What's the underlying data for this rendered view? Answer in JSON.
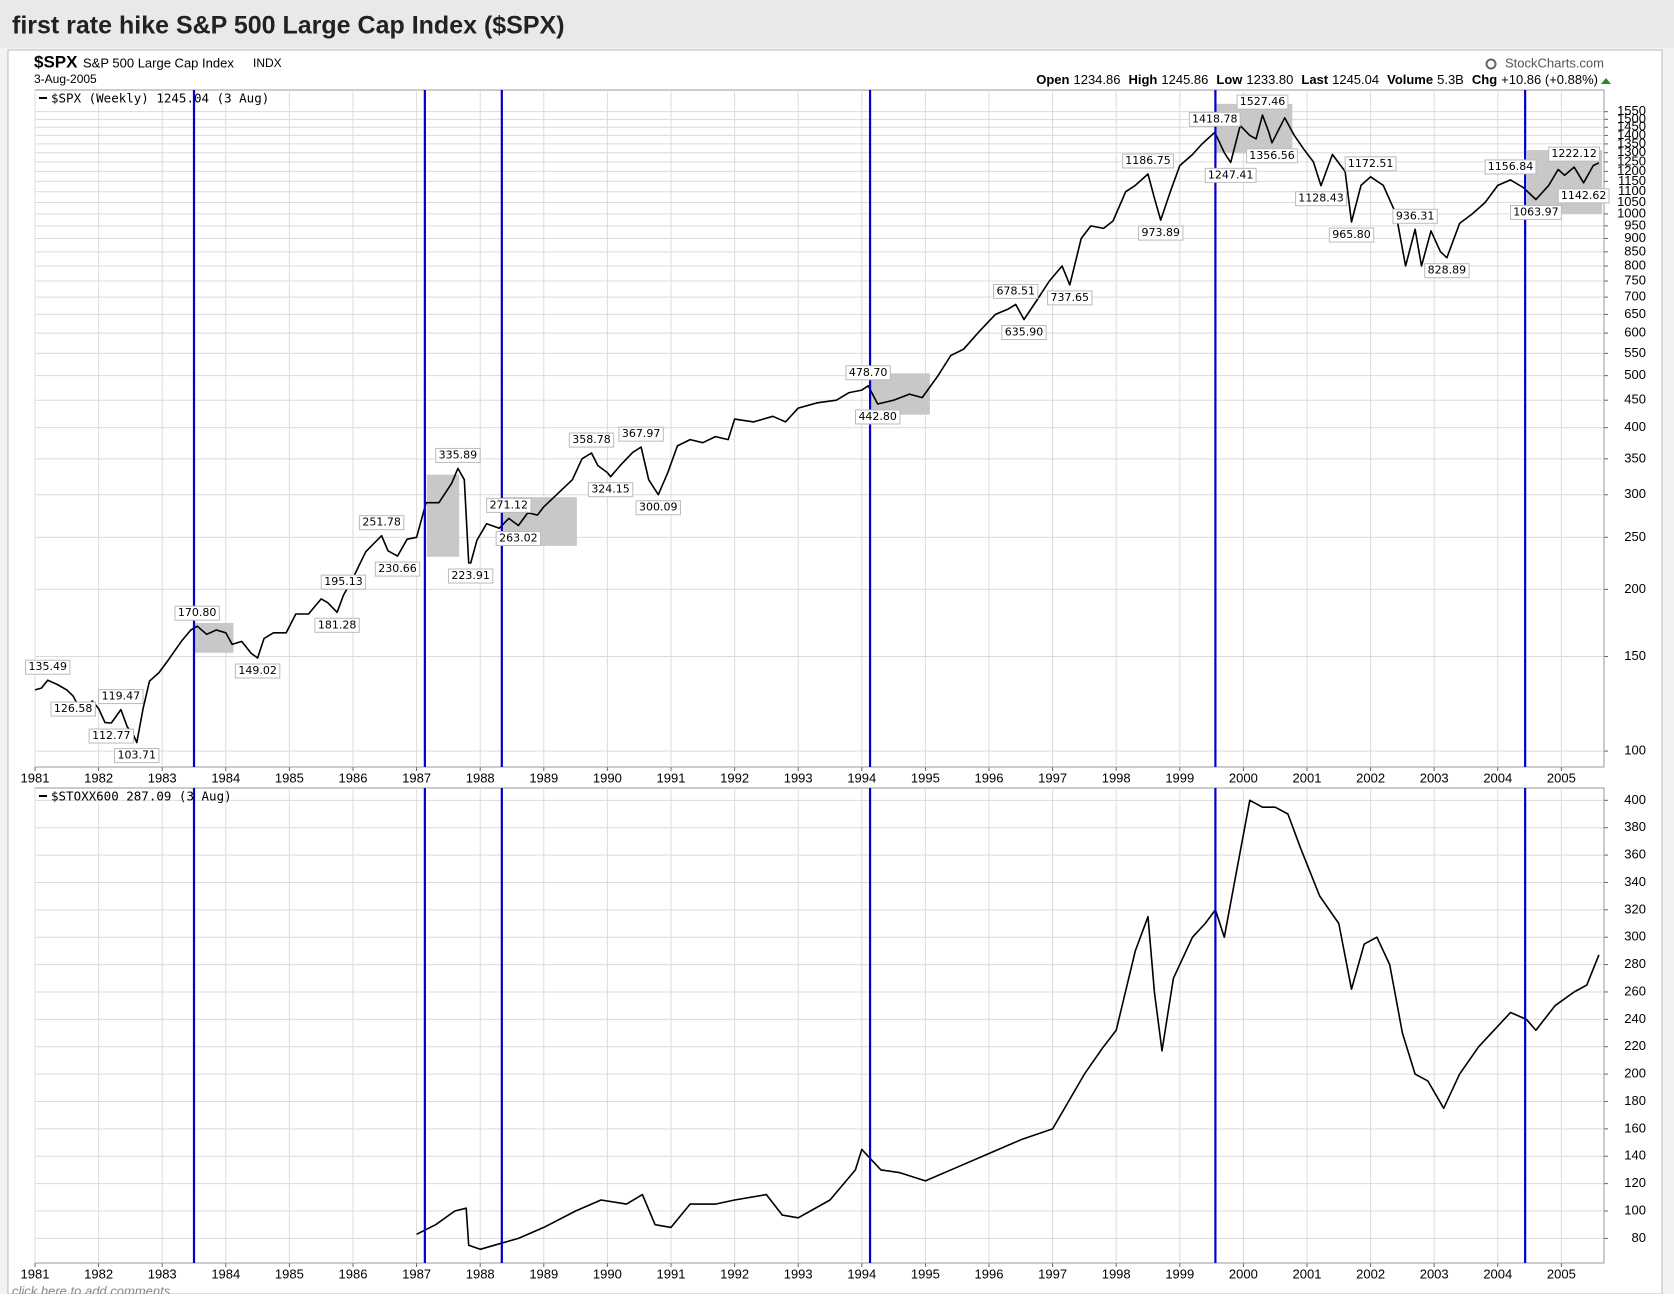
{
  "header": {
    "title": "first rate hike S&P 500 Large Cap Index ($SPX)",
    "footer": "click here to add comments"
  },
  "chart_data": [
    {
      "type": "line",
      "log_y": true,
      "symbol": "$SPX",
      "name": "S&P 500 Large Cap Index",
      "exchange": "INDX",
      "date": "3-Aug-2005",
      "source": "StockCharts.com",
      "quote": [
        {
          "label": "Open",
          "value": "1234.86"
        },
        {
          "label": "High",
          "value": "1245.86"
        },
        {
          "label": "Low",
          "value": "1233.80"
        },
        {
          "label": "Last",
          "value": "1245.04"
        },
        {
          "label": "Volume",
          "value": "5.3B"
        },
        {
          "label": "Chg",
          "value": "+10.86 (+0.88%)"
        }
      ],
      "legend": "$SPX (Weekly) 1245.04 (3 Aug)",
      "color": "#000000",
      "grid": true,
      "x": [
        1981.0,
        1981.1,
        1981.2,
        1981.35,
        1981.5,
        1981.6,
        1981.75,
        1981.9,
        1982.0,
        1982.1,
        1982.2,
        1982.35,
        1982.45,
        1982.55,
        1982.6,
        1982.7,
        1982.8,
        1982.95,
        1983.1,
        1983.3,
        1983.45,
        1983.55,
        1983.7,
        1983.85,
        1984.0,
        1984.1,
        1984.25,
        1984.4,
        1984.5,
        1984.6,
        1984.75,
        1984.95,
        1985.1,
        1985.3,
        1985.5,
        1985.6,
        1985.75,
        1985.85,
        1986.0,
        1986.2,
        1986.35,
        1986.45,
        1986.55,
        1986.7,
        1986.85,
        1987.0,
        1987.15,
        1987.35,
        1987.55,
        1987.65,
        1987.75,
        1987.82,
        1987.85,
        1987.95,
        1988.1,
        1988.3,
        1988.45,
        1988.6,
        1988.75,
        1988.9,
        1989.0,
        1989.2,
        1989.45,
        1989.6,
        1989.75,
        1989.85,
        1990.0,
        1990.05,
        1990.2,
        1990.4,
        1990.53,
        1990.65,
        1990.8,
        1990.95,
        1991.1,
        1991.3,
        1991.5,
        1991.7,
        1991.9,
        1992.0,
        1992.3,
        1992.6,
        1992.8,
        1993.0,
        1993.3,
        1993.6,
        1993.8,
        1994.0,
        1994.1,
        1994.25,
        1994.5,
        1994.75,
        1994.95,
        1995.2,
        1995.4,
        1995.6,
        1995.85,
        1996.1,
        1996.3,
        1996.42,
        1996.55,
        1996.75,
        1996.95,
        1997.15,
        1997.27,
        1997.45,
        1997.6,
        1997.8,
        1997.95,
        1998.15,
        1998.3,
        1998.5,
        1998.6,
        1998.7,
        1998.85,
        1999.0,
        1999.2,
        1999.35,
        1999.55,
        1999.7,
        1999.8,
        1999.95,
        2000.1,
        2000.2,
        2000.3,
        2000.4,
        2000.45,
        2000.65,
        2000.8,
        2000.95,
        2001.1,
        2001.22,
        2001.4,
        2001.6,
        2001.7,
        2001.85,
        2002.0,
        2002.2,
        2002.4,
        2002.55,
        2002.7,
        2002.8,
        2002.95,
        2003.1,
        2003.2,
        2003.4,
        2003.6,
        2003.8,
        2004.0,
        2004.2,
        2004.4,
        2004.6,
        2004.8,
        2004.95,
        2005.05,
        2005.2,
        2005.35,
        2005.5,
        2005.59
      ],
      "values": [
        130,
        131,
        135.49,
        133,
        130,
        126.58,
        117,
        124,
        120,
        113,
        112.77,
        119.47,
        111,
        107,
        103.71,
        120,
        135,
        140,
        148,
        160,
        168,
        170.8,
        165,
        168,
        166,
        158,
        160,
        152,
        149.02,
        162,
        166,
        166,
        180,
        180,
        192,
        189,
        181.28,
        195.13,
        210,
        235,
        245,
        251.78,
        236,
        230.66,
        248,
        250,
        290,
        290,
        315,
        335.89,
        320,
        224,
        223.91,
        247,
        265,
        260,
        271.12,
        263.02,
        278,
        275,
        285,
        300,
        320,
        350,
        358.78,
        340,
        330,
        324.15,
        340,
        360,
        367.97,
        320,
        300.09,
        330,
        370,
        380,
        375,
        385,
        380,
        415,
        410,
        420,
        410,
        435,
        445,
        450,
        465,
        470,
        478.7,
        442.8,
        450,
        462,
        455,
        500,
        545,
        560,
        605,
        650,
        665,
        678.51,
        635.9,
        690,
        750,
        800,
        737.65,
        900,
        950,
        940,
        970,
        1100,
        1130,
        1186.75,
        1070,
        973.89,
        1100,
        1230,
        1290,
        1350,
        1418.78,
        1300,
        1247.41,
        1460,
        1400,
        1380,
        1527.46,
        1420,
        1356.56,
        1510,
        1400,
        1320,
        1250,
        1128.43,
        1290,
        1200,
        965.8,
        1130,
        1172.51,
        1130,
        1000,
        800,
        936.31,
        800,
        930,
        850,
        828.89,
        960,
        1000,
        1050,
        1130,
        1156.84,
        1120,
        1063.97,
        1130,
        1210,
        1180,
        1222.12,
        1142.62,
        1230,
        1245.04
      ],
      "annotations": [
        {
          "x": 1981.2,
          "value": 135.49,
          "label": "135.49",
          "position": "above"
        },
        {
          "x": 1981.6,
          "value": 126.58,
          "label": "126.58",
          "position": "below"
        },
        {
          "x": 1982.2,
          "value": 112.77,
          "label": "112.77",
          "position": "below"
        },
        {
          "x": 1982.35,
          "value": 119.47,
          "label": "119.47",
          "position": "above"
        },
        {
          "x": 1982.6,
          "value": 103.71,
          "label": "103.71",
          "position": "below"
        },
        {
          "x": 1983.55,
          "value": 170.8,
          "label": "170.80",
          "position": "above"
        },
        {
          "x": 1984.5,
          "value": 149.02,
          "label": "149.02",
          "position": "below"
        },
        {
          "x": 1985.85,
          "value": 195.13,
          "label": "195.13",
          "position": "above"
        },
        {
          "x": 1985.75,
          "value": 181.28,
          "label": "181.28",
          "position": "below"
        },
        {
          "x": 1986.45,
          "value": 251.78,
          "label": "251.78",
          "position": "above"
        },
        {
          "x": 1986.7,
          "value": 230.66,
          "label": "230.66",
          "position": "below"
        },
        {
          "x": 1987.65,
          "value": 335.89,
          "label": "335.89",
          "position": "above"
        },
        {
          "x": 1987.85,
          "value": 223.91,
          "label": "223.91",
          "position": "below"
        },
        {
          "x": 1988.45,
          "value": 271.12,
          "label": "271.12",
          "position": "above"
        },
        {
          "x": 1988.6,
          "value": 263.02,
          "label": "263.02",
          "position": "below"
        },
        {
          "x": 1989.75,
          "value": 358.78,
          "label": "358.78",
          "position": "above"
        },
        {
          "x": 1990.53,
          "value": 367.97,
          "label": "367.97",
          "position": "above"
        },
        {
          "x": 1990.05,
          "value": 324.15,
          "label": "324.15",
          "position": "below"
        },
        {
          "x": 1990.8,
          "value": 300.09,
          "label": "300.09",
          "position": "below"
        },
        {
          "x": 1994.1,
          "value": 478.7,
          "label": "478.70",
          "position": "above"
        },
        {
          "x": 1994.25,
          "value": 442.8,
          "label": "442.80",
          "position": "below"
        },
        {
          "x": 1996.42,
          "value": 678.51,
          "label": "678.51",
          "position": "above"
        },
        {
          "x": 1996.55,
          "value": 635.9,
          "label": "635.90",
          "position": "below"
        },
        {
          "x": 1997.27,
          "value": 737.65,
          "label": "737.65",
          "position": "below"
        },
        {
          "x": 1998.5,
          "value": 1186.75,
          "label": "1186.75",
          "position": "above"
        },
        {
          "x": 1998.7,
          "value": 973.89,
          "label": "973.89",
          "position": "below"
        },
        {
          "x": 1999.55,
          "value": 1418.78,
          "label": "1418.78",
          "position": "above"
        },
        {
          "x": 1999.8,
          "value": 1247.41,
          "label": "1247.41",
          "position": "below"
        },
        {
          "x": 2000.3,
          "value": 1527.46,
          "label": "1527.46",
          "position": "above"
        },
        {
          "x": 2000.45,
          "value": 1356.56,
          "label": "1356.56",
          "position": "below"
        },
        {
          "x": 2001.22,
          "value": 1128.43,
          "label": "1128.43",
          "position": "below"
        },
        {
          "x": 2001.7,
          "value": 965.8,
          "label": "965.80",
          "position": "below"
        },
        {
          "x": 2002.0,
          "value": 1172.51,
          "label": "1172.51",
          "position": "above"
        },
        {
          "x": 2002.7,
          "value": 936.31,
          "label": "936.31",
          "position": "above"
        },
        {
          "x": 2003.2,
          "value": 828.89,
          "label": "828.89",
          "position": "below"
        },
        {
          "x": 2004.2,
          "value": 1156.84,
          "label": "1156.84",
          "position": "above"
        },
        {
          "x": 2004.6,
          "value": 1063.97,
          "label": "1063.97",
          "position": "below"
        },
        {
          "x": 2005.2,
          "value": 1222.12,
          "label": "1222.12",
          "position": "above"
        },
        {
          "x": 2005.35,
          "value": 1142.62,
          "label": "1142.62",
          "position": "below"
        }
      ],
      "shaded": [
        {
          "x": [
            1983.5,
            1984.12
          ],
          "y": [
            152.4,
            173.2
          ]
        },
        {
          "x": [
            1987.16,
            1987.67
          ],
          "y": [
            230,
            327
          ]
        },
        {
          "x": [
            1988.34,
            1989.52
          ],
          "y": [
            241,
            297
          ]
        },
        {
          "x": [
            1994.13,
            1995.07
          ],
          "y": [
            423,
            505
          ]
        },
        {
          "x": [
            1999.56,
            2000.77
          ],
          "y": [
            1297,
            1603
          ]
        },
        {
          "x": [
            2004.46,
            2005.64
          ],
          "y": [
            1000,
            1315
          ]
        }
      ],
      "shade_color": "#c8c8c8",
      "rate_hikes": [
        1983.5,
        1987.13,
        1988.34,
        1994.13,
        1999.56,
        2004.43
      ],
      "rate_hike_color": "#0000cc",
      "xlim": [
        1981,
        2005.67
      ],
      "xticks": [
        1981,
        1982,
        1983,
        1984,
        1985,
        1986,
        1987,
        1988,
        1989,
        1990,
        1991,
        1992,
        1993,
        1994,
        1995,
        1996,
        1997,
        1998,
        1999,
        2000,
        2001,
        2002,
        2003,
        2004,
        2005
      ],
      "ylim": [
        93.4,
        1701
      ],
      "yticks": [
        100,
        150,
        200,
        250,
        300,
        350,
        400,
        450,
        500,
        550,
        600,
        650,
        700,
        750,
        800,
        850,
        900,
        950,
        1000,
        1050,
        1100,
        1150,
        1200,
        1250,
        1300,
        1350,
        1400,
        1450,
        1500,
        1550
      ]
    },
    {
      "type": "line",
      "log_y": false,
      "legend": "$STOXX600 287.09 (3 Aug)",
      "color": "#000000",
      "grid": true,
      "x": [
        1987.0,
        1987.3,
        1987.6,
        1987.78,
        1987.82,
        1988.0,
        1988.3,
        1988.6,
        1989.0,
        1989.5,
        1989.9,
        1990.3,
        1990.55,
        1990.75,
        1991.0,
        1991.3,
        1991.7,
        1992.0,
        1992.5,
        1992.75,
        1993.0,
        1993.5,
        1993.9,
        1994.0,
        1994.3,
        1994.6,
        1995.0,
        1995.5,
        1996.0,
        1996.5,
        1997.0,
        1997.5,
        1997.8,
        1998.0,
        1998.3,
        1998.5,
        1998.6,
        1998.72,
        1998.9,
        1999.2,
        1999.4,
        1999.56,
        1999.7,
        1999.9,
        2000.1,
        2000.3,
        2000.5,
        2000.7,
        2000.9,
        2001.2,
        2001.5,
        2001.7,
        2001.9,
        2002.1,
        2002.3,
        2002.5,
        2002.7,
        2002.9,
        2003.15,
        2003.4,
        2003.7,
        2004.0,
        2004.2,
        2004.45,
        2004.6,
        2004.9,
        2005.2,
        2005.4,
        2005.59
      ],
      "values": [
        83,
        90,
        100,
        102,
        75,
        72,
        76,
        80,
        88,
        100,
        108,
        105,
        112,
        90,
        88,
        105,
        105,
        108,
        112,
        97,
        95,
        108,
        130,
        145,
        130,
        128,
        122,
        132,
        142,
        152,
        160,
        200,
        220,
        232,
        290,
        315,
        260,
        217,
        270,
        300,
        310,
        320,
        300,
        350,
        400,
        395,
        395,
        390,
        365,
        330,
        310,
        262,
        295,
        300,
        280,
        230,
        200,
        195,
        175,
        200,
        220,
        235,
        245,
        240,
        232,
        250,
        260,
        265,
        287.09
      ],
      "rate_hikes": [
        1983.5,
        1987.13,
        1988.34,
        1994.13,
        1999.56,
        2004.43
      ],
      "rate_hike_color": "#0000cc",
      "xlim": [
        1981,
        2005.67
      ],
      "xticks": [
        1981,
        1982,
        1983,
        1984,
        1985,
        1986,
        1987,
        1988,
        1989,
        1990,
        1991,
        1992,
        1993,
        1994,
        1995,
        1996,
        1997,
        1998,
        1999,
        2000,
        2001,
        2002,
        2003,
        2004,
        2005
      ],
      "ylim": [
        62,
        409
      ],
      "yticks": [
        80,
        100,
        120,
        140,
        160,
        180,
        200,
        220,
        240,
        260,
        280,
        300,
        320,
        340,
        360,
        380,
        400
      ]
    }
  ]
}
